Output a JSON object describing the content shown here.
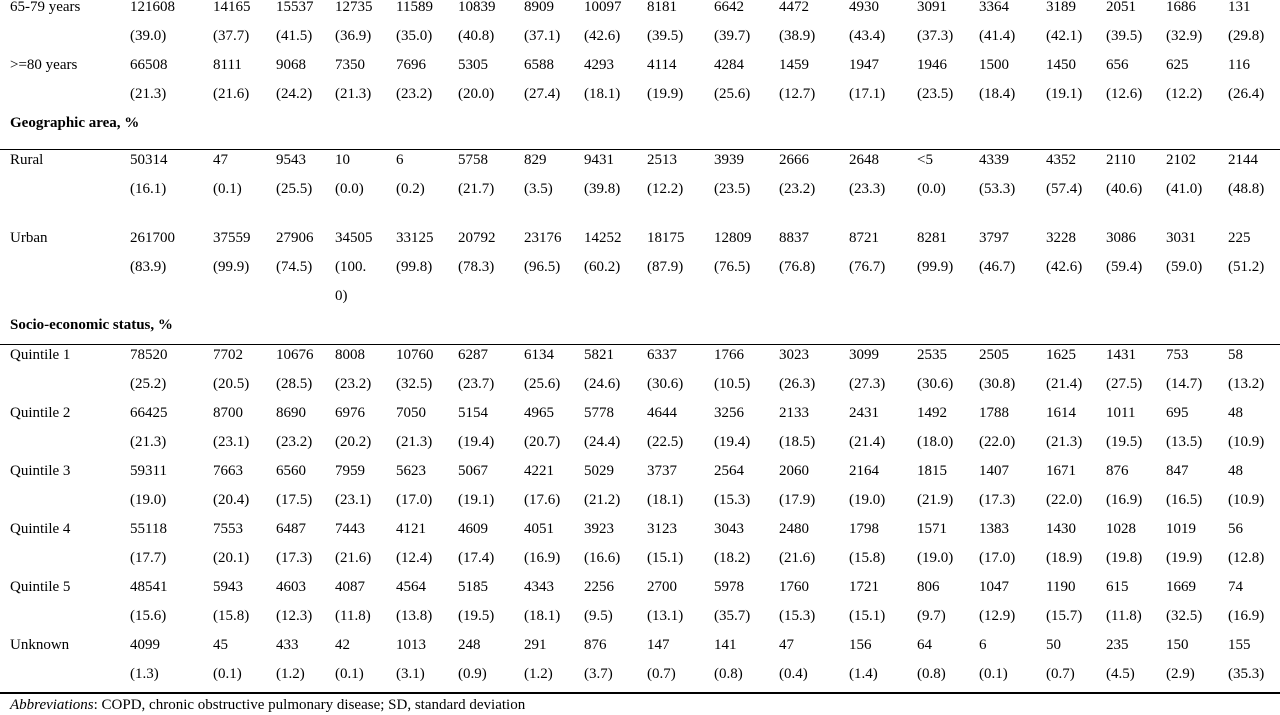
{
  "rows": [
    {
      "key": "age_65_79",
      "label": "65-79 years",
      "counts": [
        "121608",
        "14165",
        "15537",
        "12735",
        "11589",
        "10839",
        "8909",
        "10097",
        "8181",
        "6642",
        "4472",
        "4930",
        "3091",
        "3364",
        "3189",
        "2051",
        "1686",
        "131"
      ],
      "pcts": [
        "(39.0)",
        "(37.7)",
        "(41.5)",
        "(36.9)",
        "(35.0)",
        "(40.8)",
        "(37.1)",
        "(42.6)",
        "(39.5)",
        "(39.7)",
        "(38.9)",
        "(43.4)",
        "(37.3)",
        "(41.4)",
        "(42.1)",
        "(39.5)",
        "(32.9)",
        "(29.8)"
      ]
    },
    {
      "key": "age_80_plus",
      "label": ">=80 years",
      "counts": [
        "66508",
        "8111",
        "9068",
        "7350",
        "7696",
        "5305",
        "6588",
        "4293",
        "4114",
        "4284",
        "1459",
        "1947",
        "1946",
        "1500",
        "1450",
        "656",
        "625",
        "116"
      ],
      "pcts": [
        "(21.3)",
        "(21.6)",
        "(24.2)",
        "(21.3)",
        "(23.2)",
        "(20.0)",
        "(27.4)",
        "(18.1)",
        "(19.9)",
        "(25.6)",
        "(12.7)",
        "(17.1)",
        "(23.5)",
        "(18.4)",
        "(19.1)",
        "(12.6)",
        "(12.2)",
        "(26.4)"
      ]
    },
    {
      "key": "rural",
      "label": "Rural",
      "counts": [
        "50314",
        "47",
        "9543",
        "10",
        "6",
        "5758",
        "829",
        "9431",
        "2513",
        "3939",
        "2666",
        "2648",
        "<5",
        "4339",
        "4352",
        "2110",
        "2102",
        "2144"
      ],
      "pcts": [
        "(16.1)",
        "(0.1)",
        "(25.5)",
        "(0.0)",
        "(0.2)",
        "(21.7)",
        "(3.5)",
        "(39.8)",
        "(12.2)",
        "(23.5)",
        "(23.2)",
        "(23.3)",
        "(0.0)",
        "(53.3)",
        "(57.4)",
        "(40.6)",
        "(41.0)",
        "(48.8)"
      ]
    },
    {
      "key": "urban",
      "label": "Urban",
      "counts": [
        "261700",
        "37559",
        "27906",
        "34505",
        "33125",
        "20792",
        "23176",
        "14252",
        "18175",
        "12809",
        "8837",
        "8721",
        "8281",
        "3797",
        "3228",
        "3086",
        "3031",
        "225"
      ],
      "pcts": [
        "(83.9)",
        "(99.9)",
        "(74.5)",
        "(100.",
        "(99.8)",
        "(78.3)",
        "(96.5)",
        "(60.2)",
        "(87.9)",
        "(76.5)",
        "(76.8)",
        "(76.7)",
        "(99.9)",
        "(46.7)",
        "(42.6)",
        "(59.4)",
        "(59.0)",
        "(51.2)"
      ],
      "overflow": "0)"
    },
    {
      "key": "q1",
      "label": "Quintile 1",
      "counts": [
        "78520",
        "7702",
        "10676",
        "8008",
        "10760",
        "6287",
        "6134",
        "5821",
        "6337",
        "1766",
        "3023",
        "3099",
        "2535",
        "2505",
        "1625",
        "1431",
        "753",
        "58"
      ],
      "pcts": [
        "(25.2)",
        "(20.5)",
        "(28.5)",
        "(23.2)",
        "(32.5)",
        "(23.7)",
        "(25.6)",
        "(24.6)",
        "(30.6)",
        "(10.5)",
        "(26.3)",
        "(27.3)",
        "(30.6)",
        "(30.8)",
        "(21.4)",
        "(27.5)",
        "(14.7)",
        "(13.2)"
      ]
    },
    {
      "key": "q2",
      "label": "Quintile 2",
      "counts": [
        "66425",
        "8700",
        "8690",
        "6976",
        "7050",
        "5154",
        "4965",
        "5778",
        "4644",
        "3256",
        "2133",
        "2431",
        "1492",
        "1788",
        "1614",
        "1011",
        "695",
        "48"
      ],
      "pcts": [
        "(21.3)",
        "(23.1)",
        "(23.2)",
        "(20.2)",
        "(21.3)",
        "(19.4)",
        "(20.7)",
        "(24.4)",
        "(22.5)",
        "(19.4)",
        "(18.5)",
        "(21.4)",
        "(18.0)",
        "(22.0)",
        "(21.3)",
        "(19.5)",
        "(13.5)",
        "(10.9)"
      ]
    },
    {
      "key": "q3",
      "label": "Quintile 3",
      "counts": [
        "59311",
        "7663",
        "6560",
        "7959",
        "5623",
        "5067",
        "4221",
        "5029",
        "3737",
        "2564",
        "2060",
        "2164",
        "1815",
        "1407",
        "1671",
        "876",
        "847",
        "48"
      ],
      "pcts": [
        "(19.0)",
        "(20.4)",
        "(17.5)",
        "(23.1)",
        "(17.0)",
        "(19.1)",
        "(17.6)",
        "(21.2)",
        "(18.1)",
        "(15.3)",
        "(17.9)",
        "(19.0)",
        "(21.9)",
        "(17.3)",
        "(22.0)",
        "(16.9)",
        "(16.5)",
        "(10.9)"
      ]
    },
    {
      "key": "q4",
      "label": "Quintile 4",
      "counts": [
        "55118",
        "7553",
        "6487",
        "7443",
        "4121",
        "4609",
        "4051",
        "3923",
        "3123",
        "3043",
        "2480",
        "1798",
        "1571",
        "1383",
        "1430",
        "1028",
        "1019",
        "56"
      ],
      "pcts": [
        "(17.7)",
        "(20.1)",
        "(17.3)",
        "(21.6)",
        "(12.4)",
        "(17.4)",
        "(16.9)",
        "(16.6)",
        "(15.1)",
        "(18.2)",
        "(21.6)",
        "(15.8)",
        "(19.0)",
        "(17.0)",
        "(18.9)",
        "(19.8)",
        "(19.9)",
        "(12.8)"
      ]
    },
    {
      "key": "q5",
      "label": "Quintile 5",
      "counts": [
        "48541",
        "5943",
        "4603",
        "4087",
        "4564",
        "5185",
        "4343",
        "2256",
        "2700",
        "5978",
        "1760",
        "1721",
        "806",
        "1047",
        "1190",
        "615",
        "1669",
        "74"
      ],
      "pcts": [
        "(15.6)",
        "(15.8)",
        "(12.3)",
        "(11.8)",
        "(13.8)",
        "(19.5)",
        "(18.1)",
        "(9.5)",
        "(13.1)",
        "(35.7)",
        "(15.3)",
        "(15.1)",
        "(9.7)",
        "(12.9)",
        "(15.7)",
        "(11.8)",
        "(32.5)",
        "(16.9)"
      ]
    },
    {
      "key": "unknown",
      "label": "Unknown",
      "counts": [
        "4099",
        "45",
        "433",
        "42",
        "1013",
        "248",
        "291",
        "876",
        "147",
        "141",
        "47",
        "156",
        "64",
        "6",
        "50",
        "235",
        "150",
        "155"
      ],
      "pcts": [
        "(1.3)",
        "(0.1)",
        "(1.2)",
        "(0.1)",
        "(3.1)",
        "(0.9)",
        "(1.2)",
        "(3.7)",
        "(0.7)",
        "(0.8)",
        "(0.4)",
        "(1.4)",
        "(0.8)",
        "(0.1)",
        "(0.7)",
        "(4.5)",
        "(2.9)",
        "(35.3)"
      ]
    }
  ],
  "sections": {
    "geographic": "Geographic area, %",
    "socioeconomic": "Socio-economic status, %"
  },
  "footnote": {
    "label": "Abbreviations",
    "text": ": COPD, chronic obstructive pulmonary disease; SD, standard deviation"
  }
}
